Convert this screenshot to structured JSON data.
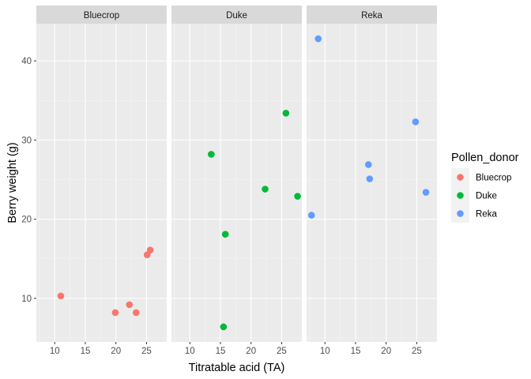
{
  "chart_data": {
    "type": "scatter",
    "facet_by": "Pollen_donor",
    "facets": [
      "Bluecrop",
      "Duke",
      "Reka"
    ],
    "xlabel": "Titratable acid (TA)",
    "ylabel": "Berry weight (g)",
    "xlim": [
      7,
      28.3
    ],
    "ylim": [
      4.5,
      44.7
    ],
    "x_ticks": [
      10,
      15,
      20,
      25
    ],
    "y_ticks": [
      10,
      20,
      30,
      40
    ],
    "grid": true,
    "legend": {
      "title": "Pollen_donor",
      "placement": "right",
      "entries": [
        {
          "name": "Bluecrop",
          "color": "#F8766D"
        },
        {
          "name": "Duke",
          "color": "#00BA38"
        },
        {
          "name": "Reka",
          "color": "#619CFF"
        }
      ]
    },
    "series": [
      {
        "name": "Bluecrop",
        "color": "#F8766D",
        "points": [
          {
            "x": 11.0,
            "y": 10.3
          },
          {
            "x": 19.9,
            "y": 8.2
          },
          {
            "x": 22.2,
            "y": 9.2
          },
          {
            "x": 23.3,
            "y": 8.2
          },
          {
            "x": 25.1,
            "y": 15.5
          },
          {
            "x": 25.6,
            "y": 16.1
          }
        ]
      },
      {
        "name": "Duke",
        "color": "#00BA38",
        "points": [
          {
            "x": 13.5,
            "y": 28.2
          },
          {
            "x": 15.5,
            "y": 6.4
          },
          {
            "x": 15.8,
            "y": 18.1
          },
          {
            "x": 22.3,
            "y": 23.8
          },
          {
            "x": 25.7,
            "y": 33.4
          },
          {
            "x": 27.6,
            "y": 22.9
          }
        ]
      },
      {
        "name": "Reka",
        "color": "#619CFF",
        "points": [
          {
            "x": 7.8,
            "y": 20.5
          },
          {
            "x": 8.9,
            "y": 42.8
          },
          {
            "x": 17.1,
            "y": 26.9
          },
          {
            "x": 17.3,
            "y": 25.1
          },
          {
            "x": 24.8,
            "y": 32.3
          },
          {
            "x": 26.5,
            "y": 23.4
          }
        ]
      }
    ]
  }
}
